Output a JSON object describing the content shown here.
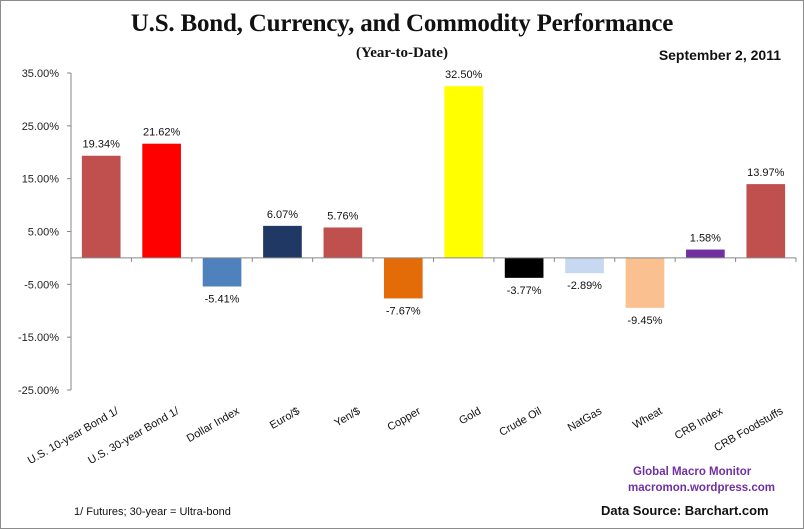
{
  "header": {
    "title": "U.S. Bond, Currency, and Commodity Performance",
    "subtitle": "(Year-to-Date)",
    "date": "September 2, 2011"
  },
  "footer": {
    "footnote": "1/  Futures; 30-year = Ultra-bond",
    "brand_name": "Global Macro Monitor",
    "brand_url": "macromon.wordpress.com",
    "data_source": "Data Source:  Barchart.com"
  },
  "chart_data": {
    "type": "bar",
    "title": "U.S. Bond, Currency, and Commodity Performance",
    "subtitle": "(Year-to-Date)",
    "xlabel": "",
    "ylabel": "",
    "ylim": [
      -25,
      35
    ],
    "yticks": [
      35,
      25,
      15,
      5,
      -5,
      -15,
      -25
    ],
    "ytick_labels": [
      "35.00%",
      "25.00%",
      "15.00%",
      "5.00%",
      "-5.00%",
      "-15.00%",
      "-25.00%"
    ],
    "grid": false,
    "legend": "none",
    "categories": [
      "U.S. 10-year Bond 1/",
      "U.S. 30-year Bond 1/",
      "Dollar Index",
      "Euro/$",
      "Yen/$",
      "Copper",
      "Gold",
      "Crude Oil",
      "NatGas",
      "Wheat",
      "CRB Index",
      "CRB Foodstuffs"
    ],
    "values": [
      19.34,
      21.62,
      -5.41,
      6.07,
      5.76,
      -7.67,
      32.5,
      -3.77,
      -2.89,
      -9.45,
      1.58,
      13.97
    ],
    "data_labels": [
      "19.34%",
      "21.62%",
      "-5.41%",
      "6.07%",
      "5.76%",
      "-7.67%",
      "32.50%",
      "-3.77%",
      "-2.89%",
      "-9.45%",
      "1.58%",
      "13.97%"
    ],
    "colors": [
      "#c0504d",
      "#ff0000",
      "#4f81bd",
      "#1f3864",
      "#c0504d",
      "#e36c09",
      "#ffff00",
      "#000000",
      "#c6d9f1",
      "#fac090",
      "#7030a0",
      "#c0504d"
    ]
  }
}
